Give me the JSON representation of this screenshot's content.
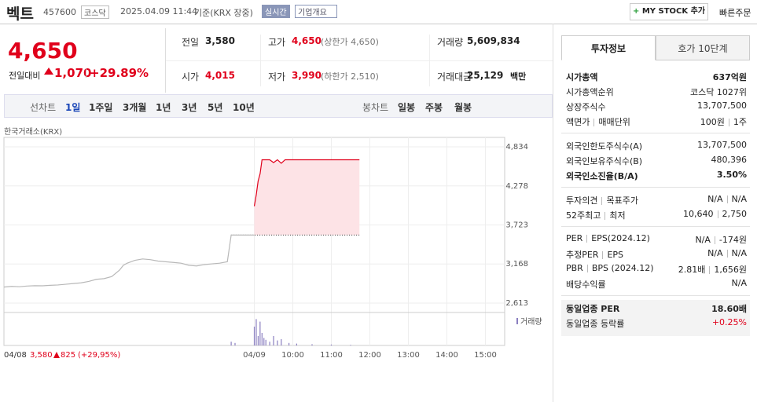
{
  "header": {
    "name": "벡트",
    "code": "457600",
    "market": "코스닥",
    "datetime": "2025.04.09 11:44",
    "basis": "기준(KRX 장중)",
    "realtime": "실시간",
    "overview": "기업개요",
    "mystock": "MY STOCK 추가",
    "quick_order": "빠른주문"
  },
  "quote": {
    "price": "4,650",
    "change_label": "전일대비",
    "change": "1,070",
    "change_pct": "+29.89%"
  },
  "stats": [
    [
      {
        "label": "전일",
        "value": "3,580"
      },
      {
        "label": "고가",
        "value": "4,650",
        "note": "(상한가 4,650)",
        "up": true
      },
      {
        "label": "거래량",
        "value": "5,609,834"
      }
    ],
    [
      {
        "label": "시가",
        "value": "4,015",
        "up": true
      },
      {
        "label": "저가",
        "value": "3,990",
        "note": "(하한가 2,510)",
        "up": true
      },
      {
        "label": "거래대금",
        "value": "25,129",
        "unit": "백만"
      }
    ]
  ],
  "tabs": {
    "line_label": "선차트",
    "line_periods": [
      "1일",
      "1주일",
      "3개월",
      "1년",
      "3년",
      "5년",
      "10년"
    ],
    "candle_label": "봉차트",
    "candle_periods": [
      "일봉",
      "주봉",
      "월봉"
    ]
  },
  "chart_data": {
    "type": "line",
    "source": "한국거래소(KRX)",
    "xlim": [
      0,
      13
    ],
    "xticks": [
      {
        "value": 0,
        "label": "04/08"
      },
      {
        "value": 6.5,
        "label": "04/09"
      },
      {
        "value": 7.5,
        "label": "10:00"
      },
      {
        "value": 8.5,
        "label": "11:00"
      },
      {
        "value": 9.5,
        "label": "12:00"
      },
      {
        "value": 10.5,
        "label": "13:00"
      },
      {
        "value": 11.5,
        "label": "14:00"
      },
      {
        "value": 12.5,
        "label": "15:00"
      }
    ],
    "ylim": [
      2501,
      4968
    ],
    "yticks": [
      {
        "value": 4834,
        "label": "4,834"
      },
      {
        "value": 4278,
        "label": "4,278"
      },
      {
        "value": 3723,
        "label": "3,723"
      },
      {
        "value": 3168,
        "label": "3,168"
      },
      {
        "value": 2613,
        "label": "2,613"
      }
    ],
    "prev_close": 3580,
    "fill_color": "#fde3e6",
    "series": [
      {
        "color": "#b8b8b8",
        "x": [
          0,
          0.2,
          0.4,
          0.6,
          0.8,
          1.0,
          1.2,
          1.4,
          1.6,
          1.8,
          2.0,
          2.2,
          2.4,
          2.6,
          2.8,
          3.0,
          3.1,
          3.2,
          3.4,
          3.6,
          3.8,
          4.0,
          4.2,
          4.4,
          4.6,
          4.8,
          5.0,
          5.2,
          5.4,
          5.6,
          5.8,
          5.9,
          6.0,
          6.5
        ],
        "values": [
          2840,
          2850,
          2845,
          2855,
          2860,
          2858,
          2865,
          2870,
          2880,
          2890,
          2900,
          2920,
          2950,
          2960,
          2990,
          3080,
          3150,
          3180,
          3220,
          3240,
          3230,
          3210,
          3200,
          3190,
          3180,
          3150,
          3140,
          3160,
          3170,
          3180,
          3200,
          3580,
          3580,
          3580
        ]
      },
      {
        "color": "#e0001b",
        "x": [
          6.5,
          6.55,
          6.6,
          6.65,
          6.7,
          6.9,
          7.0,
          7.1,
          7.2,
          7.3,
          8.0,
          9.23
        ],
        "values": [
          3990,
          4150,
          4350,
          4450,
          4650,
          4650,
          4610,
          4650,
          4600,
          4650,
          4650,
          4650
        ]
      }
    ],
    "volume": {
      "label": "거래량",
      "color": "#8a7fc0",
      "ylim": [
        0,
        500000
      ],
      "x": [
        5.9,
        6.0,
        6.5,
        6.55,
        6.6,
        6.65,
        6.7,
        6.75,
        6.8,
        6.9,
        7.0,
        7.1,
        7.2,
        7.4,
        7.6,
        8.0,
        8.5,
        9.0
      ],
      "values": [
        60000,
        40000,
        300000,
        420000,
        150000,
        380000,
        200000,
        120000,
        90000,
        60000,
        150000,
        80000,
        100000,
        40000,
        30000,
        20000,
        15000,
        10000
      ]
    },
    "hover": {
      "date": "04/08",
      "price": "3,580",
      "change": "825",
      "change_pct": "(+29,95%)"
    }
  },
  "info_panel": {
    "tabs": [
      "투자정보",
      "호가 10단계"
    ],
    "sections": [
      [
        {
          "labels": [
            "시가총액"
          ],
          "values": [
            "637억원"
          ],
          "bold": true
        },
        {
          "labels": [
            "시가총액순위"
          ],
          "values": [
            "코스닥 1027위"
          ]
        },
        {
          "labels": [
            "상장주식수"
          ],
          "values": [
            "13,707,500"
          ]
        },
        {
          "labels": [
            "액면가",
            "매매단위"
          ],
          "values": [
            "100원",
            "1주"
          ]
        }
      ],
      [
        {
          "labels": [
            "외국인한도주식수(A)"
          ],
          "values": [
            "13,707,500"
          ]
        },
        {
          "labels": [
            "외국인보유주식수(B)"
          ],
          "values": [
            "480,396"
          ]
        },
        {
          "labels": [
            "외국인소진율(B/A)"
          ],
          "values": [
            "3.50%"
          ],
          "bold": true
        }
      ],
      [
        {
          "labels": [
            "투자의견",
            "목표주가"
          ],
          "values": [
            "N/A",
            "N/A"
          ]
        },
        {
          "labels": [
            "52주최고",
            "최저"
          ],
          "values": [
            "10,640",
            "2,750"
          ]
        }
      ],
      [
        {
          "labels": [
            "PER",
            "EPS(2024.12)"
          ],
          "values": [
            "N/A",
            "-174원"
          ]
        },
        {
          "labels": [
            "추정PER",
            "EPS"
          ],
          "values": [
            "N/A",
            "N/A"
          ]
        },
        {
          "labels": [
            "PBR",
            "BPS (2024.12)"
          ],
          "values": [
            "2.81배",
            "1,656원"
          ]
        },
        {
          "labels": [
            "배당수익률"
          ],
          "values": [
            "N/A"
          ]
        }
      ],
      [
        {
          "labels": [
            "동일업종 PER"
          ],
          "values": [
            "18.60배"
          ],
          "bold": true
        },
        {
          "labels": [
            "동일업종 등락률"
          ],
          "values": [
            "+0.25%"
          ],
          "up": true
        }
      ]
    ]
  }
}
